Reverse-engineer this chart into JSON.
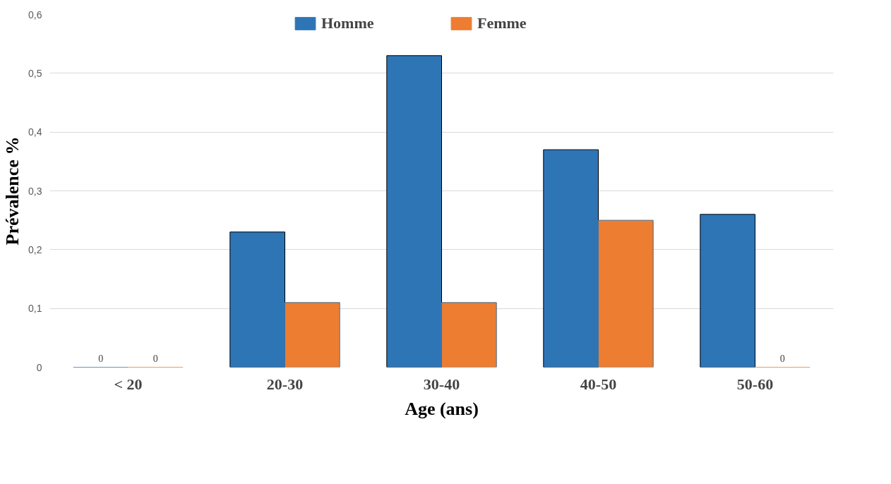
{
  "chart_data": {
    "type": "bar",
    "xlabel": "Age (ans)",
    "ylabel": "Prévalence %",
    "categories": [
      "< 20",
      "20-30",
      "30-40",
      "40-50",
      "50-60"
    ],
    "series": [
      {
        "name": "Homme",
        "color": "#2e75b6",
        "values": [
          0,
          0.23,
          0.53,
          0.37,
          0.26
        ],
        "value_labels": [
          "0",
          null,
          null,
          null,
          null
        ]
      },
      {
        "name": "Femme",
        "color": "#ed7d31",
        "values": [
          0,
          0.11,
          0.11,
          0.25,
          0
        ],
        "value_labels": [
          "0",
          null,
          null,
          null,
          "0"
        ]
      }
    ],
    "ylim": [
      0,
      0.6
    ],
    "yticks": [
      {
        "value": 0,
        "label": "0"
      },
      {
        "value": 0.1,
        "label": "0,1"
      },
      {
        "value": 0.2,
        "label": "0,2"
      },
      {
        "value": 0.3,
        "label": "0,3"
      },
      {
        "value": 0.4,
        "label": "0,4"
      },
      {
        "value": 0.5,
        "label": "0,5"
      },
      {
        "value": 0.6,
        "label": "0,6"
      }
    ],
    "grid": "y",
    "legend": "top"
  }
}
